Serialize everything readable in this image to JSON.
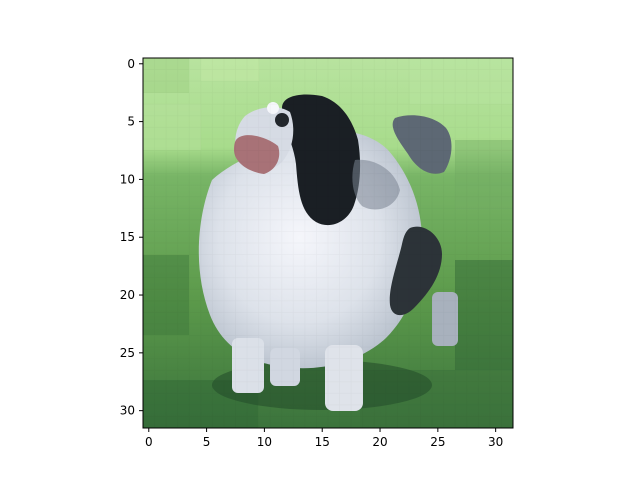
{
  "image": {
    "subject": "black and white dog on grass, low-resolution 32x32 image",
    "resolution": [
      32,
      32
    ],
    "palette": {
      "grass_light": "#a8dc8c",
      "grass_mid": "#6ba55a",
      "grass_dark": "#3f7a3d",
      "dog_white": "#e7eaf3",
      "dog_light": "#c9d0db",
      "dog_grey": "#8d96a3",
      "dog_dark": "#1d2227",
      "ear_pink": "#a87277",
      "shadow": "#24512d"
    }
  },
  "axes": {
    "x_ticks": [
      "0",
      "5",
      "10",
      "15",
      "20",
      "25",
      "30"
    ],
    "y_ticks": [
      "0",
      "5",
      "10",
      "15",
      "20",
      "25",
      "30"
    ],
    "x_range": [
      -0.5,
      31.5
    ],
    "y_range": [
      -0.5,
      31.5
    ],
    "y_inverted": true
  }
}
